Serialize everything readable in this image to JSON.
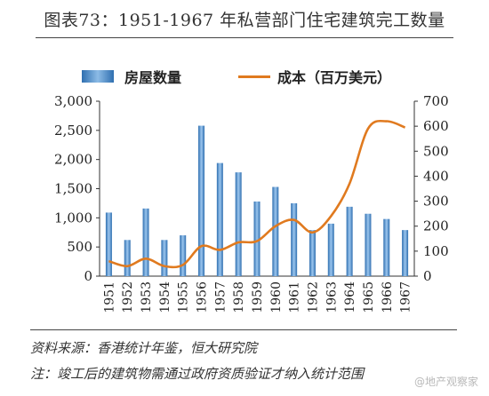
{
  "title": "图表73：1951-1967 年私营部门住宅建筑完工数量",
  "source": "资料来源：香港统计年鉴，恒大研究院",
  "note": "注：竣工后的建筑物需通过政府资质验证才纳入统计范围",
  "watermark": "@地产观察家",
  "chart_data": {
    "type": "bar+line",
    "categories": [
      "1951",
      "1952",
      "1953",
      "1954",
      "1955",
      "1956",
      "1957",
      "1958",
      "1959",
      "1960",
      "1961",
      "1962",
      "1963",
      "1964",
      "1965",
      "1966",
      "1967"
    ],
    "series": [
      {
        "name": "房屋数量",
        "type": "bar",
        "axis": "left",
        "values": [
          1090,
          620,
          1160,
          620,
          700,
          2580,
          1940,
          1780,
          1280,
          1530,
          1250,
          790,
          900,
          1190,
          1070,
          980,
          790
        ]
      },
      {
        "name": "成本（百万美元）",
        "type": "line",
        "axis": "right",
        "values": [
          60,
          40,
          70,
          40,
          45,
          120,
          105,
          135,
          140,
          200,
          225,
          175,
          240,
          370,
          590,
          620,
          595
        ]
      }
    ],
    "y_left": {
      "min": 0,
      "max": 3000,
      "ticks": [
        0,
        500,
        1000,
        1500,
        2000,
        2500,
        3000
      ],
      "labels": [
        "0",
        "500",
        "1,000",
        "1,500",
        "2,000",
        "2,500",
        "3,000"
      ]
    },
    "y_right": {
      "min": 0,
      "max": 700,
      "ticks": [
        0,
        100,
        200,
        300,
        400,
        500,
        600,
        700
      ],
      "labels": [
        "0",
        "100",
        "200",
        "300",
        "400",
        "500",
        "600",
        "700"
      ]
    },
    "colors": {
      "bar": "#4f8fd1",
      "line": "#e07a1f"
    },
    "legend_position": "top"
  }
}
